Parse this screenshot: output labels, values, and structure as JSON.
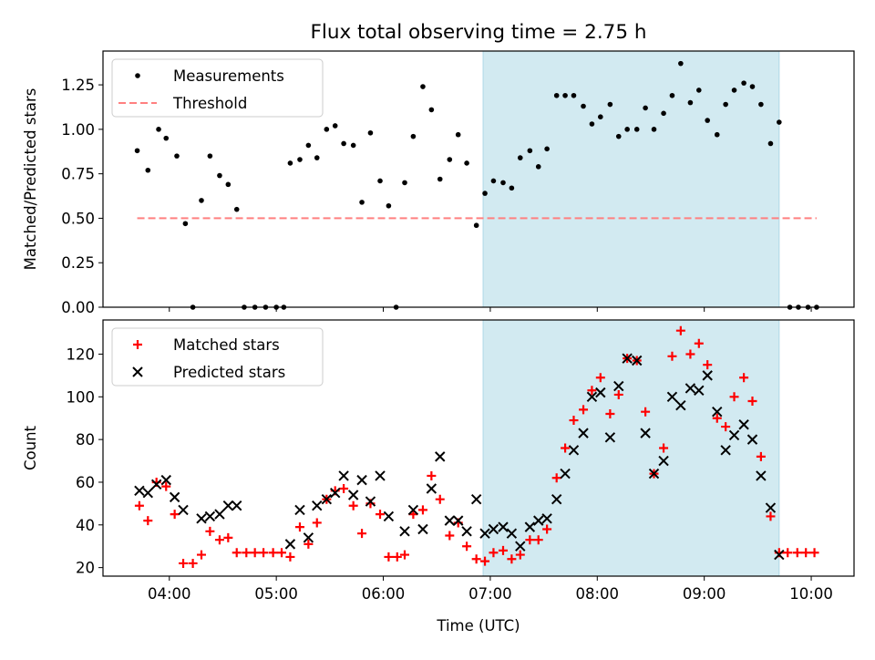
{
  "title": "Flux total observing time = 2.75 h",
  "xlabel": "Time (UTC)",
  "colors": {
    "highlight": "#add8e6",
    "threshold": "#ff8080",
    "matched": "#ff0000",
    "predicted": "#000000",
    "measurement": "#000000"
  },
  "chart_data": [
    {
      "type": "scatter",
      "ylabel": "Matched/Predicted stars",
      "xlim": [
        3.38,
        10.4
      ],
      "ylim": [
        0,
        1.44
      ],
      "yticks": [
        0,
        0.25,
        0.5,
        0.75,
        1.0,
        1.25
      ],
      "ytick_labels": [
        "0.00",
        "0.25",
        "0.50",
        "0.75",
        "1.00",
        "1.25"
      ],
      "highlight_span": [
        6.933,
        9.7
      ],
      "threshold": {
        "value": 0.5,
        "x": [
          3.7,
          10.05
        ]
      },
      "legend": [
        "Measurements",
        "Threshold"
      ],
      "legend_placement": "upper left",
      "series": [
        {
          "name": "Measurements",
          "points": [
            [
              3.7,
              0.88
            ],
            [
              3.8,
              0.77
            ],
            [
              3.9,
              1.0
            ],
            [
              3.97,
              0.95
            ],
            [
              4.07,
              0.85
            ],
            [
              4.15,
              0.47
            ],
            [
              4.22,
              0.0
            ],
            [
              4.3,
              0.6
            ],
            [
              4.38,
              0.85
            ],
            [
              4.47,
              0.74
            ],
            [
              4.55,
              0.69
            ],
            [
              4.63,
              0.55
            ],
            [
              4.7,
              0.0
            ],
            [
              4.8,
              0.0
            ],
            [
              4.9,
              0.0
            ],
            [
              5.0,
              0.0
            ],
            [
              5.07,
              0.0
            ],
            [
              5.13,
              0.81
            ],
            [
              5.22,
              0.83
            ],
            [
              5.3,
              0.91
            ],
            [
              5.38,
              0.84
            ],
            [
              5.47,
              1.0
            ],
            [
              5.55,
              1.02
            ],
            [
              5.63,
              0.92
            ],
            [
              5.72,
              0.91
            ],
            [
              5.8,
              0.59
            ],
            [
              5.88,
              0.98
            ],
            [
              5.97,
              0.71
            ],
            [
              6.05,
              0.57
            ],
            [
              6.12,
              0.0
            ],
            [
              6.2,
              0.7
            ],
            [
              6.28,
              0.96
            ],
            [
              6.37,
              1.24
            ],
            [
              6.45,
              1.11
            ],
            [
              6.53,
              0.72
            ],
            [
              6.62,
              0.83
            ],
            [
              6.7,
              0.97
            ],
            [
              6.78,
              0.81
            ],
            [
              6.87,
              0.46
            ],
            [
              6.95,
              0.64
            ],
            [
              7.03,
              0.71
            ],
            [
              7.12,
              0.7
            ],
            [
              7.2,
              0.67
            ],
            [
              7.28,
              0.84
            ],
            [
              7.37,
              0.88
            ],
            [
              7.45,
              0.79
            ],
            [
              7.53,
              0.89
            ],
            [
              7.62,
              1.19
            ],
            [
              7.7,
              1.19
            ],
            [
              7.78,
              1.19
            ],
            [
              7.87,
              1.13
            ],
            [
              7.95,
              1.03
            ],
            [
              8.03,
              1.07
            ],
            [
              8.12,
              1.14
            ],
            [
              8.2,
              0.96
            ],
            [
              8.28,
              1.0
            ],
            [
              8.37,
              1.0
            ],
            [
              8.45,
              1.12
            ],
            [
              8.53,
              1.0
            ],
            [
              8.62,
              1.09
            ],
            [
              8.7,
              1.19
            ],
            [
              8.78,
              1.37
            ],
            [
              8.87,
              1.15
            ],
            [
              8.95,
              1.22
            ],
            [
              9.03,
              1.05
            ],
            [
              9.12,
              0.97
            ],
            [
              9.2,
              1.14
            ],
            [
              9.28,
              1.22
            ],
            [
              9.37,
              1.26
            ],
            [
              9.45,
              1.24
            ],
            [
              9.53,
              1.14
            ],
            [
              9.62,
              0.92
            ],
            [
              9.7,
              1.04
            ],
            [
              9.8,
              0.0
            ],
            [
              9.88,
              0.0
            ],
            [
              9.97,
              0.0
            ],
            [
              10.05,
              0.0
            ]
          ]
        }
      ]
    },
    {
      "type": "scatter",
      "ylabel": "Count",
      "xlim": [
        3.38,
        10.4
      ],
      "ylim": [
        16,
        136
      ],
      "yticks": [
        20,
        40,
        60,
        80,
        100,
        120
      ],
      "ytick_labels": [
        "20",
        "40",
        "60",
        "80",
        "100",
        "120"
      ],
      "xticks": [
        4,
        5,
        6,
        7,
        8,
        9,
        10
      ],
      "xtick_labels": [
        "04:00",
        "05:00",
        "06:00",
        "07:00",
        "08:00",
        "09:00",
        "10:00"
      ],
      "highlight_span": [
        6.933,
        9.7
      ],
      "legend": [
        "Matched stars",
        "Predicted stars"
      ],
      "legend_placement": "upper left",
      "series": [
        {
          "name": "Matched stars",
          "points": [
            [
              3.72,
              49
            ],
            [
              3.8,
              42
            ],
            [
              3.88,
              60
            ],
            [
              3.97,
              58
            ],
            [
              4.05,
              45
            ],
            [
              4.13,
              22
            ],
            [
              4.22,
              22
            ],
            [
              4.3,
              26
            ],
            [
              4.38,
              37
            ],
            [
              4.47,
              33
            ],
            [
              4.55,
              34
            ],
            [
              4.63,
              27
            ],
            [
              4.72,
              27
            ],
            [
              4.8,
              27
            ],
            [
              4.88,
              27
            ],
            [
              4.97,
              27
            ],
            [
              5.05,
              27
            ],
            [
              5.13,
              25
            ],
            [
              5.22,
              39
            ],
            [
              5.3,
              31
            ],
            [
              5.38,
              41
            ],
            [
              5.47,
              52
            ],
            [
              5.55,
              56
            ],
            [
              5.63,
              57
            ],
            [
              5.72,
              49
            ],
            [
              5.8,
              36
            ],
            [
              5.88,
              50
            ],
            [
              5.97,
              45
            ],
            [
              6.05,
              25
            ],
            [
              6.13,
              25
            ],
            [
              6.2,
              26
            ],
            [
              6.28,
              45
            ],
            [
              6.37,
              47
            ],
            [
              6.45,
              63
            ],
            [
              6.53,
              52
            ],
            [
              6.62,
              35
            ],
            [
              6.7,
              41
            ],
            [
              6.78,
              30
            ],
            [
              6.87,
              24
            ],
            [
              6.95,
              23
            ],
            [
              7.03,
              27
            ],
            [
              7.12,
              28
            ],
            [
              7.2,
              24
            ],
            [
              7.28,
              26
            ],
            [
              7.37,
              33
            ],
            [
              7.45,
              33
            ],
            [
              7.53,
              38
            ],
            [
              7.62,
              62
            ],
            [
              7.7,
              76
            ],
            [
              7.78,
              89
            ],
            [
              7.87,
              94
            ],
            [
              7.95,
              103
            ],
            [
              8.03,
              109
            ],
            [
              8.12,
              92
            ],
            [
              8.2,
              101
            ],
            [
              8.28,
              118
            ],
            [
              8.37,
              117
            ],
            [
              8.45,
              93
            ],
            [
              8.53,
              64
            ],
            [
              8.62,
              76
            ],
            [
              8.7,
              119
            ],
            [
              8.78,
              131
            ],
            [
              8.87,
              120
            ],
            [
              8.95,
              125
            ],
            [
              9.03,
              115
            ],
            [
              9.12,
              90
            ],
            [
              9.2,
              86
            ],
            [
              9.28,
              100
            ],
            [
              9.37,
              109
            ],
            [
              9.45,
              98
            ],
            [
              9.53,
              72
            ],
            [
              9.62,
              44
            ],
            [
              9.7,
              27
            ],
            [
              9.78,
              27
            ],
            [
              9.87,
              27
            ],
            [
              9.95,
              27
            ],
            [
              10.03,
              27
            ]
          ]
        },
        {
          "name": "Predicted stars",
          "points": [
            [
              3.72,
              56
            ],
            [
              3.8,
              55
            ],
            [
              3.88,
              59
            ],
            [
              3.97,
              61
            ],
            [
              4.05,
              53
            ],
            [
              4.13,
              47
            ],
            [
              4.3,
              43
            ],
            [
              4.38,
              44
            ],
            [
              4.47,
              45
            ],
            [
              4.55,
              49
            ],
            [
              4.63,
              49
            ],
            [
              5.13,
              31
            ],
            [
              5.22,
              47
            ],
            [
              5.3,
              34
            ],
            [
              5.38,
              49
            ],
            [
              5.47,
              52
            ],
            [
              5.55,
              55
            ],
            [
              5.63,
              63
            ],
            [
              5.72,
              54
            ],
            [
              5.8,
              61
            ],
            [
              5.88,
              51
            ],
            [
              5.97,
              63
            ],
            [
              6.05,
              44
            ],
            [
              6.2,
              37
            ],
            [
              6.28,
              47
            ],
            [
              6.37,
              38
            ],
            [
              6.45,
              57
            ],
            [
              6.53,
              72
            ],
            [
              6.62,
              42
            ],
            [
              6.7,
              42
            ],
            [
              6.78,
              37
            ],
            [
              6.87,
              52
            ],
            [
              6.95,
              36
            ],
            [
              7.03,
              38
            ],
            [
              7.12,
              39
            ],
            [
              7.2,
              36
            ],
            [
              7.28,
              30
            ],
            [
              7.37,
              39
            ],
            [
              7.45,
              42
            ],
            [
              7.53,
              43
            ],
            [
              7.62,
              52
            ],
            [
              7.7,
              64
            ],
            [
              7.78,
              75
            ],
            [
              7.87,
              83
            ],
            [
              7.95,
              100
            ],
            [
              8.03,
              102
            ],
            [
              8.12,
              81
            ],
            [
              8.2,
              105
            ],
            [
              8.28,
              118
            ],
            [
              8.37,
              117
            ],
            [
              8.45,
              83
            ],
            [
              8.53,
              64
            ],
            [
              8.62,
              70
            ],
            [
              8.7,
              100
            ],
            [
              8.78,
              96
            ],
            [
              8.87,
              104
            ],
            [
              8.95,
              103
            ],
            [
              9.03,
              110
            ],
            [
              9.12,
              93
            ],
            [
              9.2,
              75
            ],
            [
              9.28,
              82
            ],
            [
              9.37,
              87
            ],
            [
              9.45,
              80
            ],
            [
              9.53,
              63
            ],
            [
              9.62,
              48
            ],
            [
              9.7,
              26
            ]
          ]
        }
      ]
    }
  ]
}
